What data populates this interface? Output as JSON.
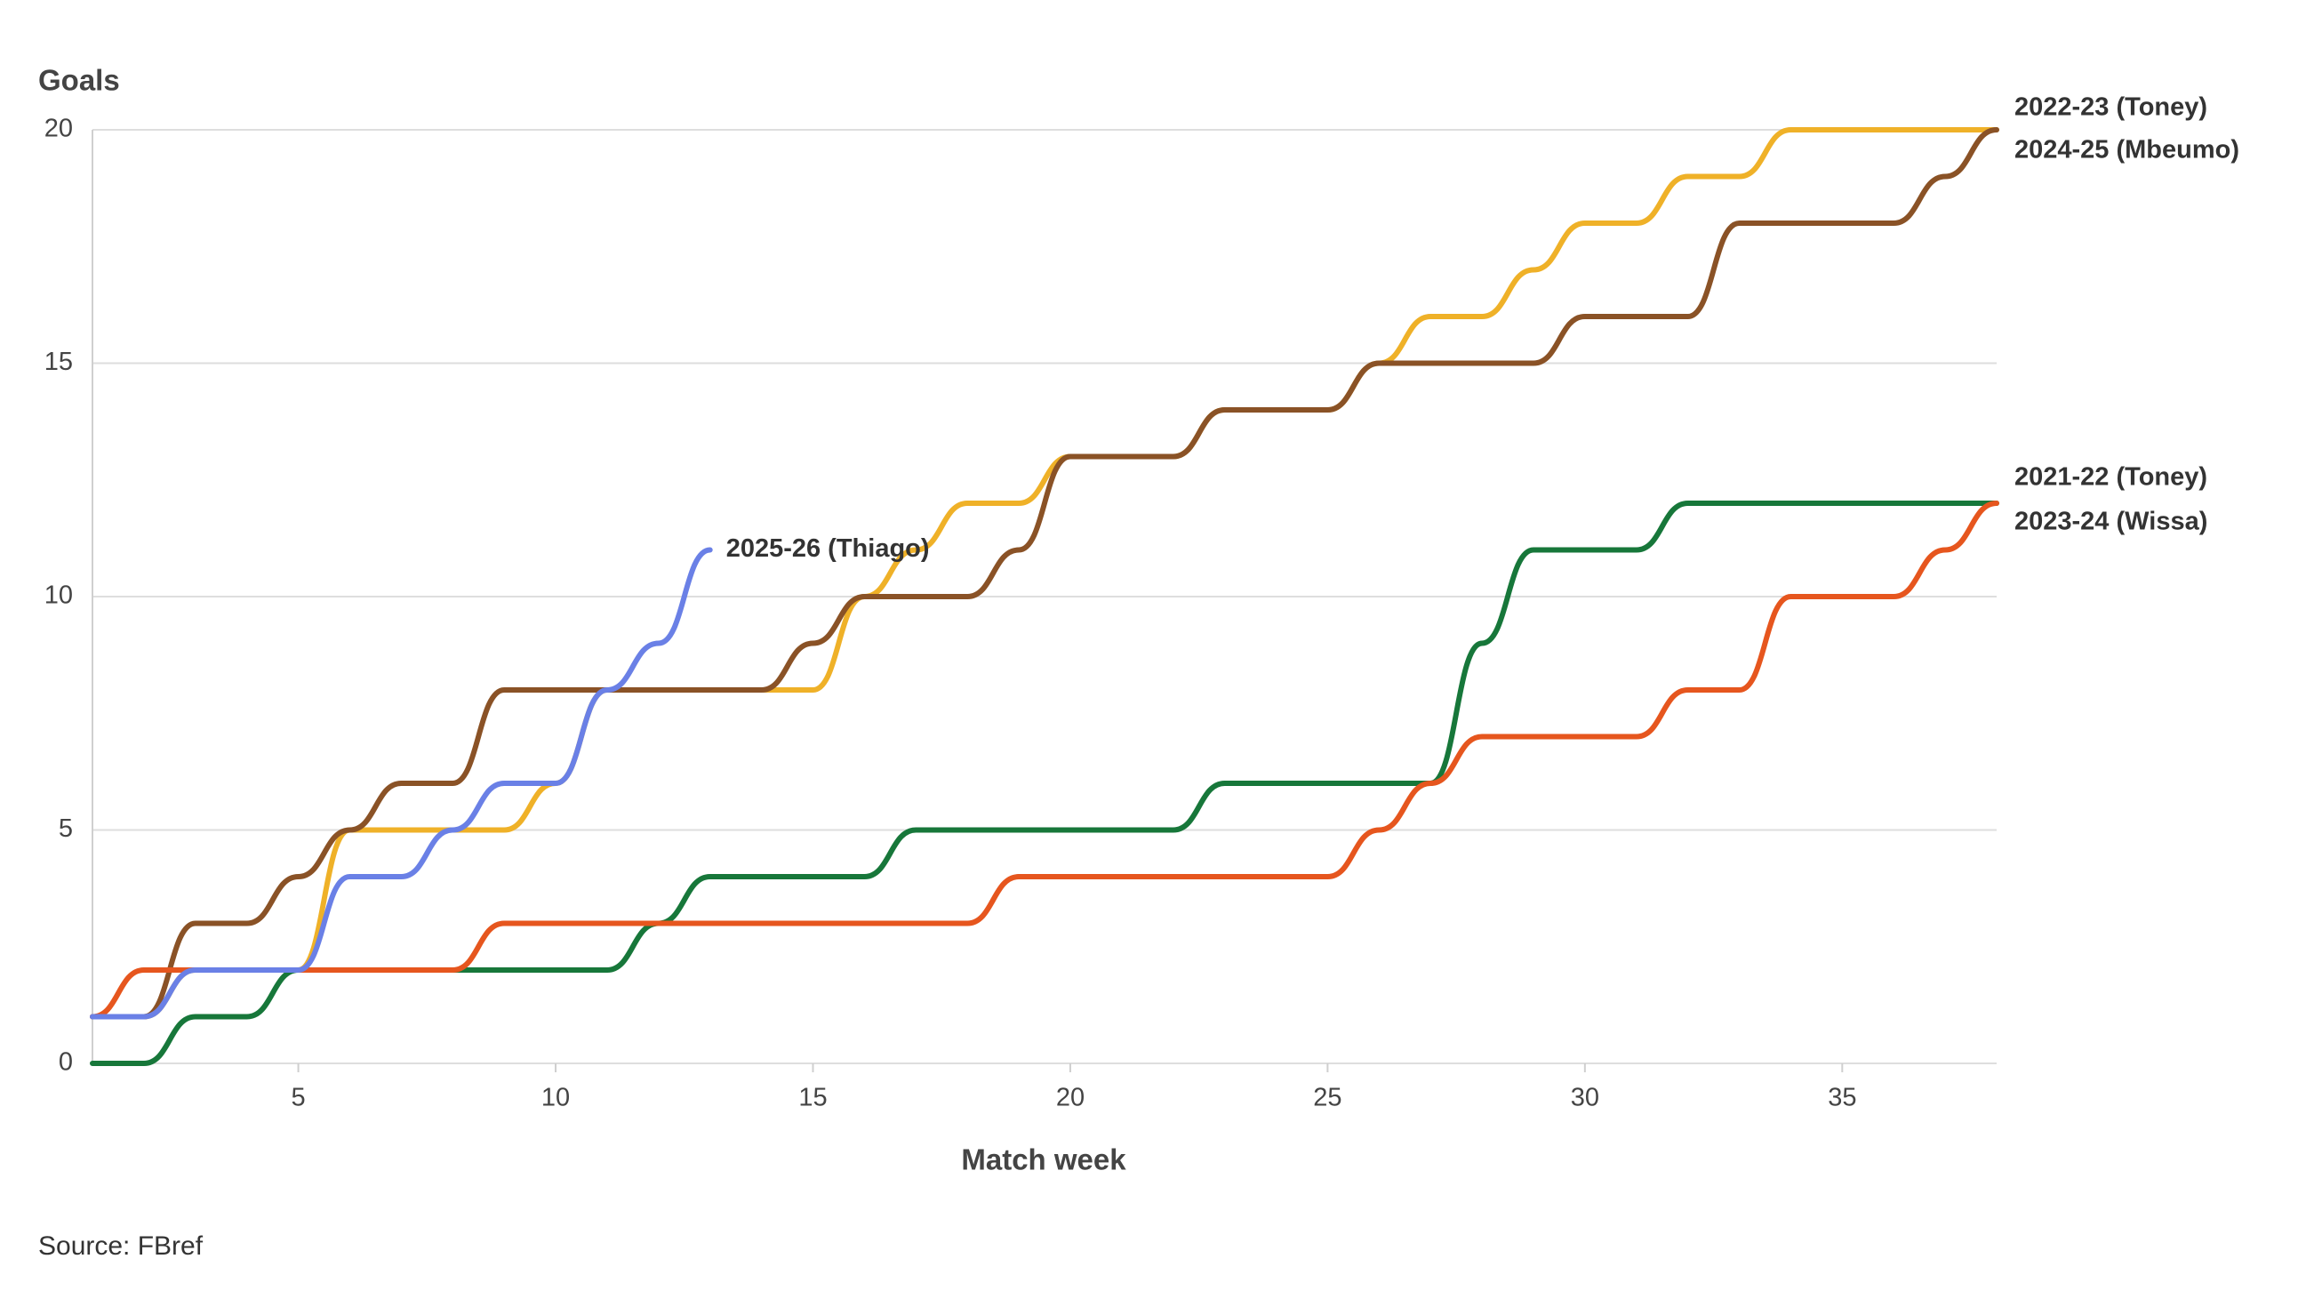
{
  "chart_data": {
    "type": "line",
    "y_label": "Goals",
    "x_label": "Match week",
    "source": "Source: FBref",
    "x": [
      1,
      2,
      3,
      4,
      5,
      6,
      7,
      8,
      9,
      10,
      11,
      12,
      13,
      14,
      15,
      16,
      17,
      18,
      19,
      20,
      21,
      22,
      23,
      24,
      25,
      26,
      27,
      28,
      29,
      30,
      31,
      32,
      33,
      34,
      35,
      36,
      37,
      38
    ],
    "xlim": [
      1,
      38
    ],
    "xticks": [
      5,
      10,
      15,
      20,
      25,
      30,
      35
    ],
    "ylim": [
      0,
      20
    ],
    "yticks": [
      0,
      5,
      10,
      15,
      20
    ],
    "grid": true,
    "series": [
      {
        "name": "2022-23 (Toney)",
        "color": "#efb128",
        "values": [
          1,
          1,
          2,
          2,
          2,
          5,
          5,
          5,
          5,
          6,
          8,
          8,
          8,
          8,
          8,
          10,
          11,
          12,
          12,
          13,
          13,
          13,
          14,
          14,
          14,
          15,
          16,
          16,
          17,
          18,
          18,
          19,
          19,
          20,
          20,
          20,
          20,
          20
        ]
      },
      {
        "name": "2024-25 (Mbeumo)",
        "color": "#8a5226",
        "values": [
          1,
          1,
          3,
          3,
          4,
          5,
          6,
          6,
          8,
          8,
          8,
          8,
          8,
          8,
          9,
          10,
          10,
          10,
          11,
          13,
          13,
          13,
          14,
          14,
          14,
          15,
          15,
          15,
          15,
          16,
          16,
          16,
          18,
          18,
          18,
          18,
          19,
          20
        ]
      },
      {
        "name": "2021-22 (Toney)",
        "color": "#17773a",
        "values": [
          0,
          0,
          1,
          1,
          2,
          2,
          2,
          2,
          2,
          2,
          2,
          3,
          4,
          4,
          4,
          4,
          5,
          5,
          5,
          5,
          5,
          5,
          6,
          6,
          6,
          6,
          6,
          9,
          11,
          11,
          11,
          12,
          12,
          12,
          12,
          12,
          12,
          12
        ]
      },
      {
        "name": "2023-24 (Wissa)",
        "color": "#e6561e",
        "values": [
          1,
          2,
          2,
          2,
          2,
          2,
          2,
          2,
          3,
          3,
          3,
          3,
          3,
          3,
          3,
          3,
          3,
          3,
          4,
          4,
          4,
          4,
          4,
          4,
          4,
          5,
          6,
          7,
          7,
          7,
          7,
          8,
          8,
          10,
          10,
          10,
          11,
          12
        ]
      },
      {
        "name": "2025-26 (Thiago)",
        "color": "#6a80e6",
        "values": [
          1,
          1,
          2,
          2,
          2,
          4,
          4,
          5,
          6,
          6,
          8,
          9,
          11,
          null,
          null,
          null,
          null,
          null,
          null,
          null,
          null,
          null,
          null,
          null,
          null,
          null,
          null,
          null,
          null,
          null,
          null,
          null,
          null,
          null,
          null,
          null,
          null,
          null
        ]
      }
    ]
  }
}
